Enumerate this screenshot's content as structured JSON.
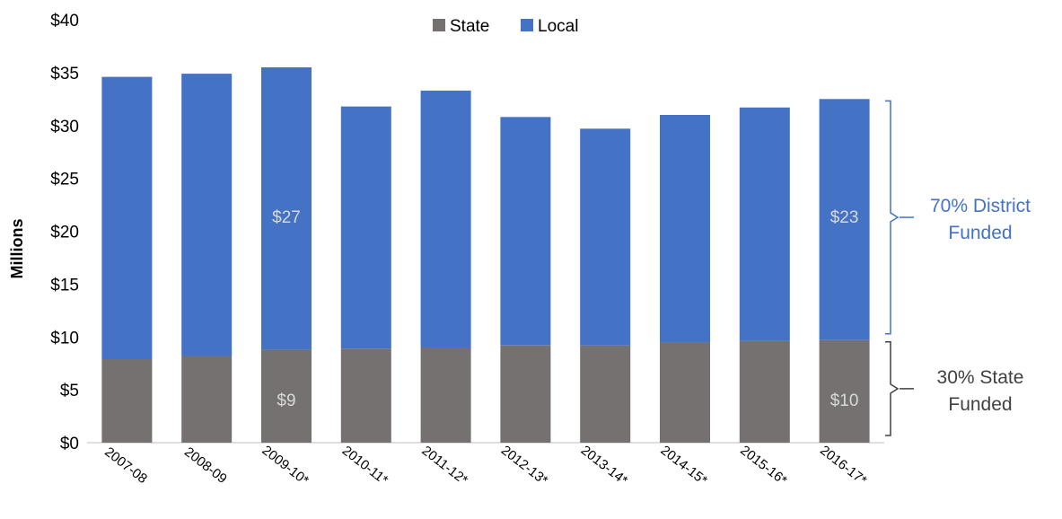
{
  "chart_data": {
    "type": "bar",
    "stacked": true,
    "categories": [
      "2007-08",
      "2008-09",
      "2009-10*",
      "2010-11*",
      "2011-12*",
      "2012-13*",
      "2013-14*",
      "2014-15*",
      "2015-16*",
      "2016-17*"
    ],
    "series": [
      {
        "name": "State",
        "color": "#767171",
        "values": [
          7.9,
          8.2,
          8.8,
          8.9,
          9.0,
          9.2,
          9.2,
          9.5,
          9.6,
          9.7
        ]
      },
      {
        "name": "Local",
        "color": "#4472c4",
        "values": [
          26.7,
          26.7,
          26.7,
          22.9,
          24.3,
          21.6,
          20.5,
          21.5,
          22.1,
          22.8
        ]
      }
    ],
    "ylabel": "Millions",
    "ylim": [
      0,
      40
    ],
    "yticks": [
      0,
      5,
      10,
      15,
      20,
      25,
      30,
      35,
      40
    ],
    "ytick_labels": [
      "$0",
      "$5",
      "$10",
      "$15",
      "$20",
      "$25",
      "$30",
      "$35",
      "$40"
    ],
    "legend_position": "top-center",
    "grid": false,
    "data_labels": [
      {
        "category": "2009-10*",
        "series": "Local",
        "text": "$27"
      },
      {
        "category": "2009-10*",
        "series": "State",
        "text": "$9"
      },
      {
        "category": "2016-17*",
        "series": "Local",
        "text": "$23"
      },
      {
        "category": "2016-17*",
        "series": "State",
        "text": "$10"
      }
    ],
    "annotations": {
      "local": {
        "lines": [
          "70% District",
          "Funded"
        ],
        "color": "#4472c4"
      },
      "state": {
        "lines": [
          "30% State",
          "Funded"
        ],
        "color": "#404040"
      }
    }
  }
}
